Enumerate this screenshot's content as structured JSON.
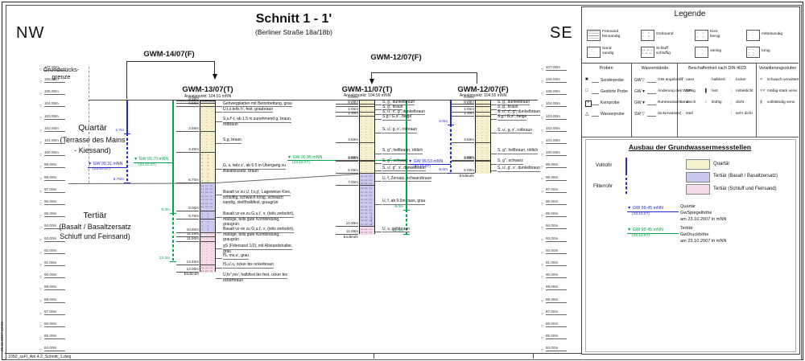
{
  "page": {
    "stamp": "26.11.2007 10:39",
    "filename": "1050_ssFl_Anl.4.2_Schnitt_1.dwg",
    "orientation_left": "NW",
    "orientation_right": "SE"
  },
  "header": {
    "title": "Schnitt 1 - 1'",
    "subtitle": "(Berliner Straße 18a/18b)"
  },
  "boundary_label": {
    "line1": "Grundstücks-",
    "line2": "grenze"
  },
  "regions": {
    "quartaer": [
      "Quartär",
      "(Terrasse des Mains",
      "- Kiessand)"
    ],
    "tertiaer": [
      "Tertiär",
      "(Basalt / Basaltzersatz",
      "Schluff und Feinsand)"
    ]
  },
  "scale": {
    "elevations": [
      "107.00m",
      "106.00m",
      "105.00m",
      "104.00m",
      "103.00m",
      "102.00m",
      "101.00m",
      "100.00m",
      "99.00m",
      "98.00m",
      "97.00m",
      "96.00m",
      "95.00m",
      "94.00m",
      "93.00m",
      "92.00m",
      "91.00m",
      "90.00m",
      "89.00m",
      "88.00m",
      "87.00m",
      "86.00m",
      "85.00m",
      "84.00m"
    ]
  },
  "section": {
    "brackets": [
      {
        "id": "gwm14",
        "label": "GWM-14/07(F)"
      },
      {
        "id": "gwm12top",
        "label": "GWM-12/07(F)"
      }
    ],
    "wells": [
      {
        "id": "gwm14",
        "color": "blue",
        "ansatz_elev": 104.5,
        "solid_to": 2.7,
        "filter_to": 6.7,
        "marks": [
          {
            "t": "2.7m",
            "d": 2.7
          },
          {
            "t": "6.70m",
            "d": 6.7
          }
        ],
        "gw": {
          "label": "GW 99.31 mNN",
          "date": "(23.10.07)",
          "elev": 99.31
        }
      },
      {
        "id": "gwm13w",
        "color": "green",
        "ansatz_elev": 104.51,
        "solid_to": 9.2,
        "filter_to": 13.2,
        "marks": [
          {
            "t": "9.2m",
            "d": 9.2
          },
          {
            "t": "13.2m",
            "d": 13.2
          }
        ],
        "gw": {
          "label": "GW 99.70 mNN",
          "date": "(23.10.07)",
          "elev": 99.7
        }
      },
      {
        "id": "gwm11w",
        "color": "green",
        "ansatz_elev": 104.56,
        "solid_to": 9.0,
        "filter_to": 11.0,
        "marks": [
          {
            "t": "9.0m",
            "d": 9.0
          },
          {
            "t": "11.0m",
            "d": 11.0
          }
        ],
        "gw": {
          "label": "GW 99.85 mNN",
          "date": "(23.10.07)",
          "elev": 99.85
        }
      },
      {
        "id": "gwm12w",
        "color": "blue",
        "ansatz_elev": 104.55,
        "solid_to": 2.0,
        "filter_to": 6.0,
        "marks": [
          {
            "t": "2.0m",
            "d": 2.0
          },
          {
            "t": "6.0m",
            "d": 6.0
          }
        ],
        "gw": {
          "label": "GW 99.53 mNN",
          "date": "(23.10.07)",
          "elev": 99.53
        }
      }
    ],
    "boreholes": [
      {
        "id": "gwm13",
        "name": "GWM-13/07(T)",
        "ansatzpunkt": "Ansatzpunkt: 104.51 mNN",
        "ansatz_elev": 104.51,
        "endteufe": "Endteufe",
        "marks": [
          {
            "t": "0.00m",
            "d": 0
          },
          {
            "t": "0.20m",
            "d": 0.2
          },
          {
            "t": "0.50m",
            "d": 0.5
          },
          {
            "t": "2.50m",
            "d": 2.5
          },
          {
            "t": "4.20m",
            "d": 4.2
          },
          {
            "t": "6.70m",
            "d": 6.7
          },
          {
            "t": "9.00m",
            "d": 9.0
          },
          {
            "t": "9.70m",
            "d": 9.7
          },
          {
            "t": "10.80m",
            "d": 10.8
          },
          {
            "t": "11.10m",
            "d": 11.1
          },
          {
            "t": "11.50m",
            "d": 11.5
          },
          {
            "t": "13.40m",
            "d": 13.4
          },
          {
            "t": "14.00m",
            "d": 14.0
          }
        ],
        "layers": [
          {
            "from": 0,
            "to": 0.2,
            "unit": "beton",
            "pattern": "none",
            "text": [
              "Gehwegplatten mit Betonbettung, grau"
            ],
            "label_depth": 0.28
          },
          {
            "from": 0.2,
            "to": 0.5,
            "unit": "quartaer",
            "pattern": "schluff",
            "text": [
              "U,t,s,teils h', fest, graubraun"
            ],
            "label_depth": 0.75
          },
          {
            "from": 0.5,
            "to": 2.5,
            "unit": "quartaer",
            "pattern": "sand",
            "text": [
              "S,u,f'-t, ab 1.5 m zunehmend g, braun,",
              "rotbraun"
            ],
            "label_depth": 1.55
          },
          {
            "from": 2.5,
            "to": 4.2,
            "unit": "quartaer",
            "pattern": "sand",
            "text": [
              "S,g, braun"
            ],
            "label_depth": 3.3
          },
          {
            "from": 4.2,
            "to": 6.7,
            "unit": "quartaer",
            "pattern": "kies",
            "text": [
              "G, s, teils x', ab 6.5 m Übergang zu",
              "Basaltzusatz, braun"
            ],
            "label_depth": 5.4
          },
          {
            "from": 6.7,
            "to": 9.0,
            "unit": "basalt",
            "pattern": "schluff",
            "text": [
              "Basalt vz zu U, f,s,g', Lageweise Kies,",
              "schluffig, schwach tonig, schwach",
              "sandig, steif/halbfest, graugrün"
            ],
            "label_depth": 7.55
          },
          {
            "from": 9.0,
            "to": 9.7,
            "unit": "basalt",
            "pattern": "kies",
            "text": [
              "Basalt vz-ve zu G,u,t', x, (teils zerbohrt),",
              "mäßige, teils gute Kornbindung,",
              "graugrün"
            ],
            "label_depth": 9.35
          },
          {
            "from": 9.7,
            "to": 10.8,
            "unit": "basalt",
            "pattern": "kies",
            "text": [
              "Basalt vz-ve zu G,u,t', x, (teils zerbohrt),",
              "mäßige, teils gute Kornbindung,",
              "graugrün"
            ],
            "label_depth": 10.6
          },
          {
            "from": 10.8,
            "to": 11.1,
            "unit": "feinsand",
            "pattern": "sand",
            "text": [
              "gS (Filtersand 1/2), mit Abstandshalter,",
              "grau"
            ],
            "label_depth": 11.95
          },
          {
            "from": 11.1,
            "to": 11.5,
            "unit": "feinsand",
            "pattern": "sand",
            "text": [
              "fS, ms,u', grau"
            ],
            "label_depth": 12.75
          },
          {
            "from": 11.5,
            "to": 13.4,
            "unit": "feinsand",
            "pattern": "sand",
            "text": [
              "fS,u',u, ocker bis ockerbraun"
            ],
            "label_depth": 13.5
          },
          {
            "from": 13.4,
            "to": 14.0,
            "unit": "feinsand",
            "pattern": "schluff",
            "text": [
              "U,fs\",ms', halbfest bis fest, ocker bis",
              "ockerbraun"
            ],
            "label_depth": 14.35
          }
        ]
      },
      {
        "id": "gwm11",
        "name": "GWM-11/07(T)",
        "ansatzpunkt": "Ansatzpunkt: 104.56 mNN",
        "ansatz_elev": 104.56,
        "endteufe": "Endteufe",
        "marks": [
          {
            "t": "0.00m",
            "d": 0
          },
          {
            "t": "0.30m",
            "d": 0.3
          },
          {
            "t": "0.50m",
            "d": 0.5
          },
          {
            "t": "1.00m",
            "d": 1.0
          },
          {
            "t": "1.30m",
            "d": 1.3
          },
          {
            "t": "3.50m",
            "d": 3.5
          },
          {
            "t": "4.90m",
            "d": 4.9
          },
          {
            "t": "5.00m",
            "d": 5.0
          },
          {
            "t": "6.00m",
            "d": 6.0
          },
          {
            "t": "7.00m",
            "d": 7.0
          },
          {
            "t": "10.30m",
            "d": 10.3
          },
          {
            "t": "11.00m",
            "d": 11.0
          }
        ],
        "layers": [
          {
            "from": 0,
            "to": 0.3,
            "unit": "quartaer",
            "pattern": "sand",
            "text": [
              "S, g', dunkelbraun"
            ],
            "label_depth": 0.2
          },
          {
            "from": 0.3,
            "to": 0.5,
            "unit": "quartaer",
            "pattern": "sand",
            "text": [
              "S, g', braun"
            ],
            "label_depth": 0.6
          },
          {
            "from": 0.5,
            "to": 1.0,
            "unit": "quartaer",
            "pattern": "sand",
            "text": [
              "S, u', x', g', dunkelbraun"
            ],
            "label_depth": 1.0
          },
          {
            "from": 1.0,
            "to": 1.3,
            "unit": "quartaer",
            "pattern": "kies",
            "text": [
              "S,g / G,s\", beige"
            ],
            "label_depth": 1.4
          },
          {
            "from": 1.3,
            "to": 3.5,
            "unit": "quartaer",
            "pattern": "sand",
            "text": [
              "S, u', g, x', rotbraun"
            ],
            "label_depth": 2.5
          },
          {
            "from": 3.5,
            "to": 4.9,
            "unit": "quartaer",
            "pattern": "sand",
            "text": [
              "S, g\", hellbraun, rötlich"
            ],
            "label_depth": 4.2
          },
          {
            "from": 4.9,
            "to": 5.0,
            "unit": "quartaer",
            "pattern": "sand",
            "text": [
              "S, g\", schwarz"
            ],
            "label_depth": 5.05
          },
          {
            "from": 5.0,
            "to": 6.0,
            "unit": "quartaer",
            "pattern": "sand",
            "text": [
              "S, u', g\", x', dunkelbraun"
            ],
            "label_depth": 5.6
          },
          {
            "from": 6.0,
            "to": 7.0,
            "unit": "basalt",
            "pattern": "schluff",
            "text": [
              "U, f, Zersatz, schwarzbraun"
            ],
            "label_depth": 6.45
          },
          {
            "from": 7.0,
            "to": 10.3,
            "unit": "basalt",
            "pattern": "schluff",
            "text": [
              "U, f, ab 9.5m nass, grau"
            ],
            "label_depth": 8.35
          },
          {
            "from": 10.3,
            "to": 11.0,
            "unit": "feinsand",
            "pattern": "schluff",
            "text": [
              "U, s, gelbbraun"
            ],
            "label_depth": 10.6
          }
        ]
      },
      {
        "id": "gwm12",
        "name": "GWM-12/07(F)",
        "ansatzpunkt": "Ansatzpunkt: 104.55 mNN",
        "ansatz_elev": 104.55,
        "endteufe": "Endteufe",
        "marks": [
          {
            "t": "0.00m",
            "d": 0
          },
          {
            "t": "0.30m",
            "d": 0.3
          },
          {
            "t": "0.50m",
            "d": 0.5
          },
          {
            "t": "1.00m",
            "d": 1.0
          },
          {
            "t": "1.30m",
            "d": 1.3
          },
          {
            "t": "3.50m",
            "d": 3.5
          },
          {
            "t": "4.90m",
            "d": 4.9
          },
          {
            "t": "5.00m",
            "d": 5.0
          },
          {
            "t": "6.00m",
            "d": 6.0
          }
        ],
        "layers": [
          {
            "from": 0,
            "to": 0.3,
            "unit": "quartaer",
            "pattern": "sand",
            "text": [
              "S, g', dunkelbraun"
            ],
            "label_depth": 0.2
          },
          {
            "from": 0.3,
            "to": 0.5,
            "unit": "quartaer",
            "pattern": "sand",
            "text": [
              "S, g', braun"
            ],
            "label_depth": 0.6
          },
          {
            "from": 0.5,
            "to": 1.0,
            "unit": "quartaer",
            "pattern": "sand",
            "text": [
              "S, u', x', g', dunkelbraun"
            ],
            "label_depth": 1.0
          },
          {
            "from": 1.0,
            "to": 1.3,
            "unit": "quartaer",
            "pattern": "kies",
            "text": [
              "S,g / G,s\", beige"
            ],
            "label_depth": 1.4
          },
          {
            "from": 1.3,
            "to": 3.5,
            "unit": "quartaer",
            "pattern": "sand",
            "text": [
              "S, u', g, x', rotbraun"
            ],
            "label_depth": 2.5
          },
          {
            "from": 3.5,
            "to": 4.9,
            "unit": "quartaer",
            "pattern": "sand",
            "text": [
              "S, g\", hellbraun, rötlich"
            ],
            "label_depth": 4.2
          },
          {
            "from": 4.9,
            "to": 5.0,
            "unit": "quartaer",
            "pattern": "sand",
            "text": [
              "S, g\", schwarz"
            ],
            "label_depth": 5.05
          },
          {
            "from": 5.0,
            "to": 6.0,
            "unit": "quartaer",
            "pattern": "sand",
            "text": [
              "S, u', g', x', dunkelbraun"
            ],
            "label_depth": 5.6
          }
        ]
      }
    ]
  },
  "legend": {
    "title": "Legende",
    "patterns": [
      {
        "label1": "Feinsand",
        "label2": "feinsandig",
        "pattern": "feinsand"
      },
      {
        "label1": "Grobsand",
        "label2": "",
        "pattern": "grobsand"
      },
      {
        "label1": "Kies",
        "label2": "kiesig",
        "pattern": "kies"
      },
      {
        "label1": "mittelsandig",
        "label2": "",
        "pattern": "mittelsand"
      },
      {
        "label1": "Sand",
        "label2": "sandig",
        "pattern": "sand"
      },
      {
        "label1": "Schluff",
        "label2": "schluffig",
        "pattern": "schluff"
      },
      {
        "label1": "steinig",
        "label2": "",
        "pattern": "steinig"
      },
      {
        "label1": "tonig",
        "label2": "",
        "pattern": "tonig"
      }
    ],
    "col_headers": [
      "Proben",
      "Wasserstände",
      "Beschaffenheit nach DIN 4023",
      "Verwitterungsstufen"
    ],
    "proben": [
      {
        "s": "■",
        "l": "Sonderprobe"
      },
      {
        "s": "□",
        "l": "Gestörte Probe"
      },
      {
        "s": "boxx",
        "l": "Kernprobe"
      },
      {
        "s": "△",
        "l": "Wasserprobe"
      }
    ],
    "wasserstaende": [
      {
        "pre": "GW",
        "s": "▽",
        "l": "GW angebohrt"
      },
      {
        "pre": "GW",
        "s": "▼",
        "l": "Änderung des WSP"
      },
      {
        "pre": "GW",
        "s": "▼",
        "l": "Ruhewasserstand"
      },
      {
        "pre": "SW",
        "s": "▽",
        "l": "Sickerwasser"
      }
    ],
    "beschaffenheit": [
      [
        {
          "s": "▽",
          "l": "nass"
        },
        {
          "s": "≀",
          "l": "breiig"
        },
        {
          "s": "≀",
          "l": "weich"
        },
        {
          "s": "¦",
          "l": "steif"
        }
      ],
      [
        {
          "s": "",
          "l": "halbfest"
        },
        {
          "s": "▌",
          "l": "fest"
        },
        {
          "s": "≀",
          "l": "klüftig"
        }
      ],
      [
        {
          "s": ":",
          "l": "locker"
        },
        {
          "s": "⋮",
          "l": "mitteldicht"
        },
        {
          "s": "⋮",
          "l": "dicht"
        },
        {
          "s": "⋮",
          "l": "sehr dicht"
        }
      ]
    ],
    "verwitterung": [
      {
        "s": "×",
        "c": "#333",
        "l": "schwach verwittert"
      },
      {
        "s": "××",
        "c": "#333",
        "l": "mäßig-stark verw."
      },
      {
        "s": "▮",
        "c": "#999",
        "l": "vollständig verw."
      }
    ],
    "ausbau": {
      "title": "Ausbau der Grundwassermessstellen",
      "vollrohr": "Vollrohr",
      "filterrohr": "Filterrohr",
      "units": [
        {
          "label": "Quartär",
          "key": "quartaer"
        },
        {
          "label": "Tertiär (Basalt / Basaltzersatz)",
          "key": "basalt"
        },
        {
          "label": "Tertiär (Schluff und Feinsand)",
          "key": "feinsand"
        }
      ],
      "gw_markers": [
        {
          "color": "blue",
          "label": "GW 99.45 mNN",
          "date": "(23.10.07)",
          "desc": [
            "Quartär",
            "GwSpiegelhöhe",
            "am 23.10.2007 in mNN"
          ]
        },
        {
          "color": "green",
          "label": "GW 99.45 mNN",
          "date": "(23.10.07)",
          "desc": [
            "Tertiär",
            "GwDruckhöhe",
            "am 23.10.2007 in mNN"
          ]
        }
      ]
    }
  },
  "colors": {
    "quartaer": "#f6f1cd",
    "basalt": "#c9c9ef",
    "feinsand": "#f6daea",
    "beton": "#d8d8d8",
    "blue": "#2427d6",
    "green": "#00a44c"
  }
}
